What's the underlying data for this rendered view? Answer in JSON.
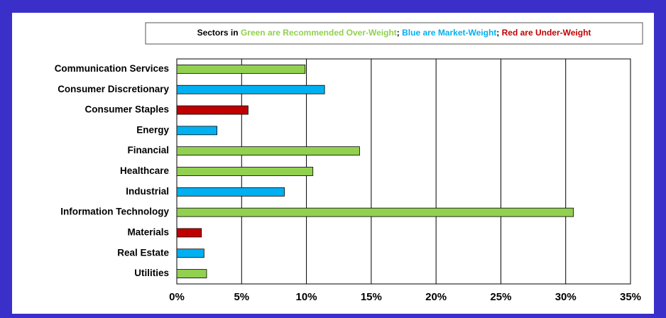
{
  "chart_data": {
    "type": "bar",
    "orientation": "horizontal",
    "legend_text": [
      {
        "text": "Sectors in ",
        "color": "#000000"
      },
      {
        "text": "Green are Recommended Over-Weight",
        "color": "#92d050"
      },
      {
        "text": "; ",
        "color": "#000000"
      },
      {
        "text": "Blue are Market-Weight",
        "color": "#00b0f0"
      },
      {
        "text": "; ",
        "color": "#000000"
      },
      {
        "text": "Red are Under-Weight",
        "color": "#c00000"
      }
    ],
    "categories": [
      "Communication Services",
      "Consumer Discretionary",
      "Consumer Staples",
      "Energy",
      "Financial",
      "Healthcare",
      "Industrial",
      "Information Technology",
      "Materials",
      "Real Estate",
      "Utilities"
    ],
    "values": [
      9.9,
      11.4,
      5.5,
      3.1,
      14.1,
      10.5,
      8.3,
      30.6,
      1.9,
      2.1,
      2.3
    ],
    "colors": [
      "#92d050",
      "#00b0f0",
      "#c00000",
      "#00b0f0",
      "#92d050",
      "#92d050",
      "#00b0f0",
      "#92d050",
      "#c00000",
      "#00b0f0",
      "#92d050"
    ],
    "xlim": [
      0,
      35
    ],
    "xticks": [
      {
        "value": 0,
        "label": "0%"
      },
      {
        "value": 5,
        "label": "5%"
      },
      {
        "value": 10,
        "label": "10%"
      },
      {
        "value": 15,
        "label": "15%"
      },
      {
        "value": 20,
        "label": "20%"
      },
      {
        "value": 25,
        "label": "25%"
      },
      {
        "value": 30,
        "label": "30%"
      },
      {
        "value": 35,
        "label": "35%"
      }
    ],
    "grid": true
  }
}
